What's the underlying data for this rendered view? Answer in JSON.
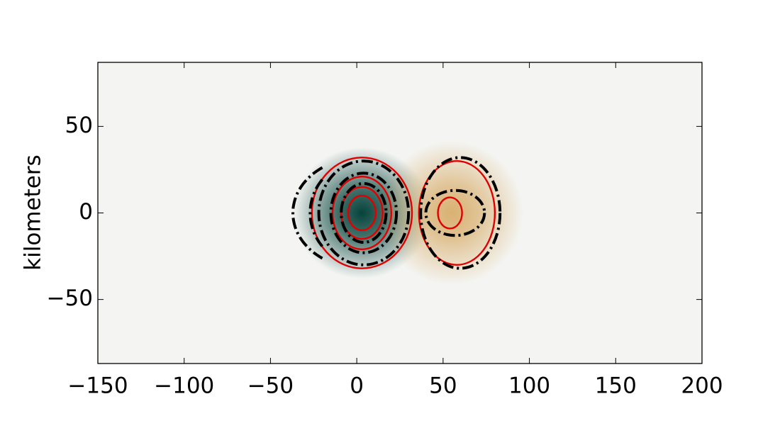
{
  "chart_data": {
    "type": "contour",
    "ylabel": "kilometers",
    "xlim": [
      -150,
      200
    ],
    "ylim": [
      -87,
      87
    ],
    "xticks": [
      {
        "value": -150,
        "label": "−150"
      },
      {
        "value": -100,
        "label": "−100"
      },
      {
        "value": -50,
        "label": "−50"
      },
      0,
      50,
      100,
      150,
      200
    ],
    "yticks": [
      {
        "value": -50,
        "label": "−50"
      },
      0,
      50
    ],
    "background": "#f4f5f3",
    "fields": [
      {
        "center": [
          3,
          0
        ],
        "rx": 40,
        "ry": 38,
        "color": "#06433b"
      },
      {
        "center": [
          55,
          0
        ],
        "rx": 42,
        "ry": 42,
        "color": "#d9b172"
      }
    ],
    "contours": [
      {
        "center": [
          3,
          0
        ],
        "rx": 29,
        "ry": 32,
        "color": "#e00000",
        "style": "solid"
      },
      {
        "center": [
          3,
          0
        ],
        "rx": 17,
        "ry": 21,
        "color": "#e00000",
        "style": "solid"
      },
      {
        "center": [
          3,
          0
        ],
        "rx": 12,
        "ry": 15,
        "color": "#e00000",
        "style": "solid"
      },
      {
        "center": [
          3,
          0
        ],
        "rx": 8,
        "ry": 10,
        "color": "#e00000",
        "style": "solid"
      },
      {
        "center": [
          58,
          0
        ],
        "rx": 22,
        "ry": 30,
        "color": "#e00000",
        "style": "solid"
      },
      {
        "center": [
          54,
          0
        ],
        "rx": 7,
        "ry": 9,
        "color": "#e00000",
        "style": "solid"
      },
      {
        "center": [
          4,
          0
        ],
        "rx": 26,
        "ry": 30,
        "color": "#000000",
        "style": "dashdot"
      },
      {
        "center": [
          4,
          0
        ],
        "rx": 19,
        "ry": 23,
        "color": "#000000",
        "style": "dashdot"
      },
      {
        "center": [
          4,
          0
        ],
        "rx": 13,
        "ry": 17,
        "color": "#000000",
        "style": "dashdot"
      },
      {
        "center": [
          60,
          0
        ],
        "rx": 23,
        "ry": 32,
        "color": "#000000",
        "style": "dashdot"
      },
      {
        "center": [
          57,
          0
        ],
        "rx": 17,
        "ry": 13,
        "color": "#000000",
        "style": "dashdot"
      },
      {
        "center": [
          3,
          0
        ],
        "rx": 40,
        "ry": 32,
        "color": "#000000",
        "style": "dashdot",
        "arc": [
          125,
          235
        ]
      },
      {
        "center": [
          3,
          0
        ],
        "rx": 30,
        "ry": 30,
        "color": "#000000",
        "style": "dashdot",
        "arc": [
          140,
          220
        ]
      }
    ]
  }
}
